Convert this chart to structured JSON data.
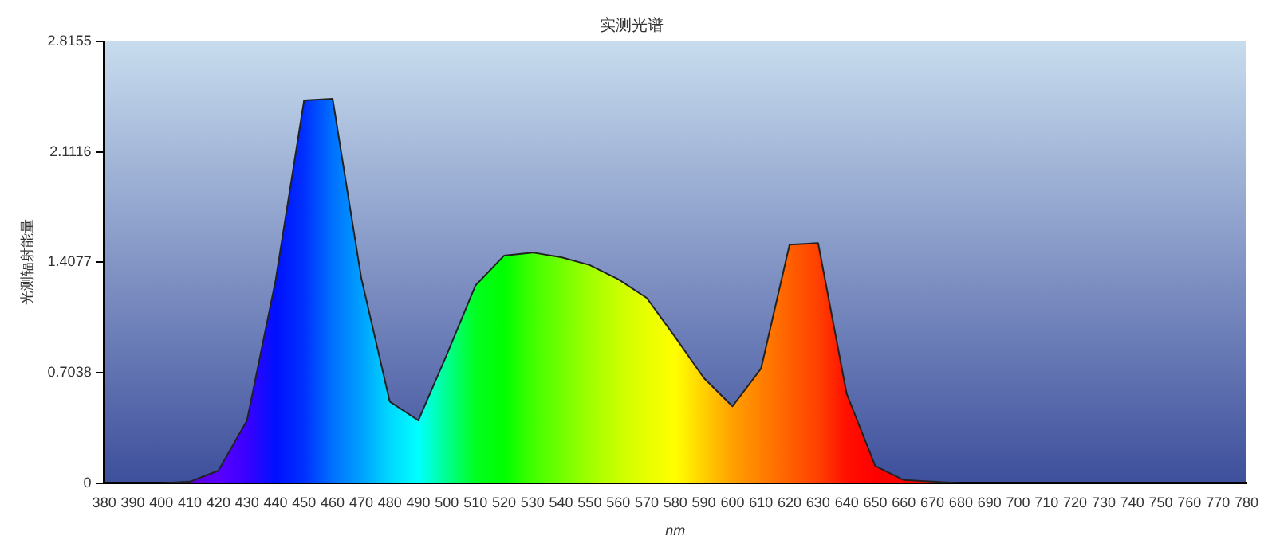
{
  "chart_data": {
    "type": "area",
    "title": "实测光谱",
    "xlabel": "nm",
    "ylabel": "光测辐射能量",
    "x": [
      380,
      390,
      400,
      410,
      420,
      430,
      440,
      450,
      460,
      470,
      480,
      490,
      500,
      510,
      520,
      530,
      540,
      550,
      560,
      570,
      580,
      590,
      600,
      610,
      620,
      630,
      640,
      650,
      660,
      670,
      680,
      690,
      700,
      710,
      720,
      730,
      740,
      750,
      760,
      770,
      780
    ],
    "series": [
      {
        "color": "#222222",
        "values": [
          0,
          0,
          0,
          0.01,
          0.08,
          0.4,
          1.29,
          2.44,
          2.45,
          1.31,
          0.52,
          0.4,
          0.82,
          1.26,
          1.45,
          1.47,
          1.44,
          1.39,
          1.3,
          1.18,
          0.93,
          0.67,
          0.49,
          0.73,
          1.52,
          1.53,
          0.57,
          0.11,
          0.02,
          0.01,
          0,
          0,
          0,
          0,
          0,
          0,
          0,
          0,
          0,
          0,
          0
        ],
        "colors": [
          "#4b0082",
          "#4b0090",
          "#5000a0",
          "#5a00d0",
          "#5a00ff",
          "#3a00ff",
          "#0010ff",
          "#0030ff",
          "#0070ff",
          "#00a0ff",
          "#00d8ff",
          "#00ffff",
          "#00ff90",
          "#00ff20",
          "#00ff00",
          "#40ff00",
          "#70ff00",
          "#a0ff00",
          "#c8ff00",
          "#e8ff00",
          "#ffff00",
          "#ffd000",
          "#ffa000",
          "#ff8000",
          "#ff6000",
          "#ff4000",
          "#ff1000",
          "#ff0000",
          "#ff0000",
          "#ff0000",
          "#ff0000",
          "#ff0000",
          "#ff0000",
          "#ff0000",
          "#ff0000",
          "#ff0000",
          "#ff0000",
          "#ff0000",
          "#ff0000",
          "#ff0000",
          "#ff0000"
        ]
      }
    ],
    "xlim": [
      380,
      780
    ],
    "xticks": [
      380,
      390,
      400,
      410,
      420,
      430,
      440,
      450,
      460,
      470,
      480,
      490,
      500,
      510,
      520,
      530,
      540,
      550,
      560,
      570,
      580,
      590,
      600,
      610,
      620,
      630,
      640,
      650,
      660,
      670,
      680,
      690,
      700,
      710,
      720,
      730,
      740,
      750,
      760,
      770,
      780
    ],
    "ylim": [
      0,
      2.8155
    ],
    "yticks": [
      0,
      0.7038,
      1.4077,
      2.1116,
      2.8155
    ],
    "grid": false,
    "legend": false,
    "marker": "none",
    "line_style": "solid"
  }
}
